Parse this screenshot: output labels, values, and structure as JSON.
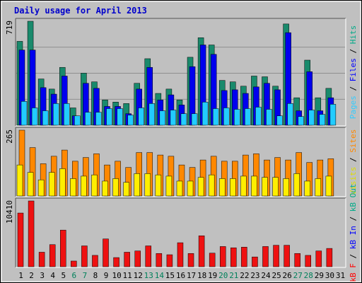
{
  "chart_data": {
    "type": "bar",
    "title": "Daily usage for April 2013",
    "days": [
      "1",
      "2",
      "3",
      "4",
      "5",
      "6",
      "7",
      "8",
      "9",
      "10",
      "11",
      "12",
      "13",
      "14",
      "15",
      "16",
      "17",
      "18",
      "19",
      "20",
      "21",
      "22",
      "23",
      "24",
      "25",
      "26",
      "27",
      "28",
      "29",
      "30",
      "31"
    ],
    "weekend_days": [
      "6",
      "7",
      "13",
      "14",
      "20",
      "21",
      "27",
      "28"
    ],
    "panels": [
      {
        "max_label": "719",
        "max": 719,
        "axis_label_parts": [
          {
            "text": "Pages",
            "color": "#33ccff"
          },
          {
            "text": " / ",
            "color": "#000000"
          },
          {
            "text": "Files",
            "color": "#0000ff"
          },
          {
            "text": " / ",
            "color": "#000000"
          },
          {
            "text": "Hits",
            "color": "#00aa88"
          }
        ],
        "series": [
          {
            "name": "Hits",
            "color": "#198a6c",
            "values": [
              580,
              719,
              320,
              250,
              400,
              120,
              360,
              300,
              175,
              160,
              150,
              290,
              460,
              220,
              250,
              175,
              470,
              605,
              555,
              310,
              300,
              270,
              340,
              335,
              270,
              700,
              190,
              450,
              190,
              255,
              0
            ]
          },
          {
            "name": "Files",
            "color": "#0000ee",
            "values": [
              520,
              520,
              260,
              215,
              340,
              65,
              290,
              255,
              130,
              130,
              80,
              250,
              400,
              175,
              210,
              140,
              405,
              555,
              490,
              240,
              245,
              220,
              265,
              290,
              245,
              640,
              100,
              370,
              100,
              190,
              0
            ]
          },
          {
            "name": "Pages",
            "color": "#22ccff",
            "values": [
              165,
              120,
              100,
              150,
              150,
              65,
              90,
              90,
              115,
              115,
              70,
              120,
              150,
              100,
              105,
              80,
              80,
              160,
              115,
              120,
              110,
              115,
              125,
              110,
              65,
              150,
              60,
              105,
              75,
              145,
              0
            ]
          }
        ]
      },
      {
        "max_label": "265",
        "max": 265,
        "axis_label_parts": [
          {
            "text": "Visits",
            "color": "#dddd00"
          },
          {
            "text": " / ",
            "color": "#000000"
          },
          {
            "text": "Sites",
            "color": "#ff8800"
          }
        ],
        "series": [
          {
            "name": "Sites",
            "color": "#ff8800",
            "values": [
              265,
              195,
              130,
              160,
              185,
              140,
              155,
              170,
              125,
              140,
              115,
              175,
              175,
              165,
              160,
              125,
              115,
              145,
              160,
              140,
              140,
              165,
              170,
              145,
              155,
              145,
              175,
              135,
              145,
              150,
              0
            ]
          },
          {
            "name": "Visits",
            "color": "#ffee00",
            "values": [
              125,
              95,
              65,
              95,
              110,
              70,
              80,
              85,
              60,
              70,
              55,
              90,
              90,
              85,
              80,
              60,
              60,
              75,
              85,
              70,
              70,
              80,
              80,
              75,
              75,
              70,
              90,
              60,
              70,
              80,
              0
            ]
          }
        ]
      },
      {
        "max_label": "10410",
        "max": 10410,
        "axis_label_parts": [
          {
            "text": "kB F",
            "color": "#ff0000"
          },
          {
            "text": " / ",
            "color": "#000000"
          },
          {
            "text": "kB In",
            "color": "#0000ff"
          },
          {
            "text": " / ",
            "color": "#000000"
          },
          {
            "text": "kB Out",
            "color": "#00aa88"
          }
        ],
        "series": [
          {
            "name": "kB F",
            "color": "#ee1111",
            "values": [
              8500,
              10410,
              2300,
              3500,
              5800,
              900,
              3300,
              1800,
              4400,
              1450,
              2300,
              2500,
              3300,
              2100,
              1900,
              3800,
              2100,
              4900,
              2150,
              3200,
              3000,
              3100,
              1550,
              3200,
              3400,
              3400,
              2100,
              1800,
              2500,
              2900,
              0
            ]
          }
        ]
      }
    ]
  }
}
